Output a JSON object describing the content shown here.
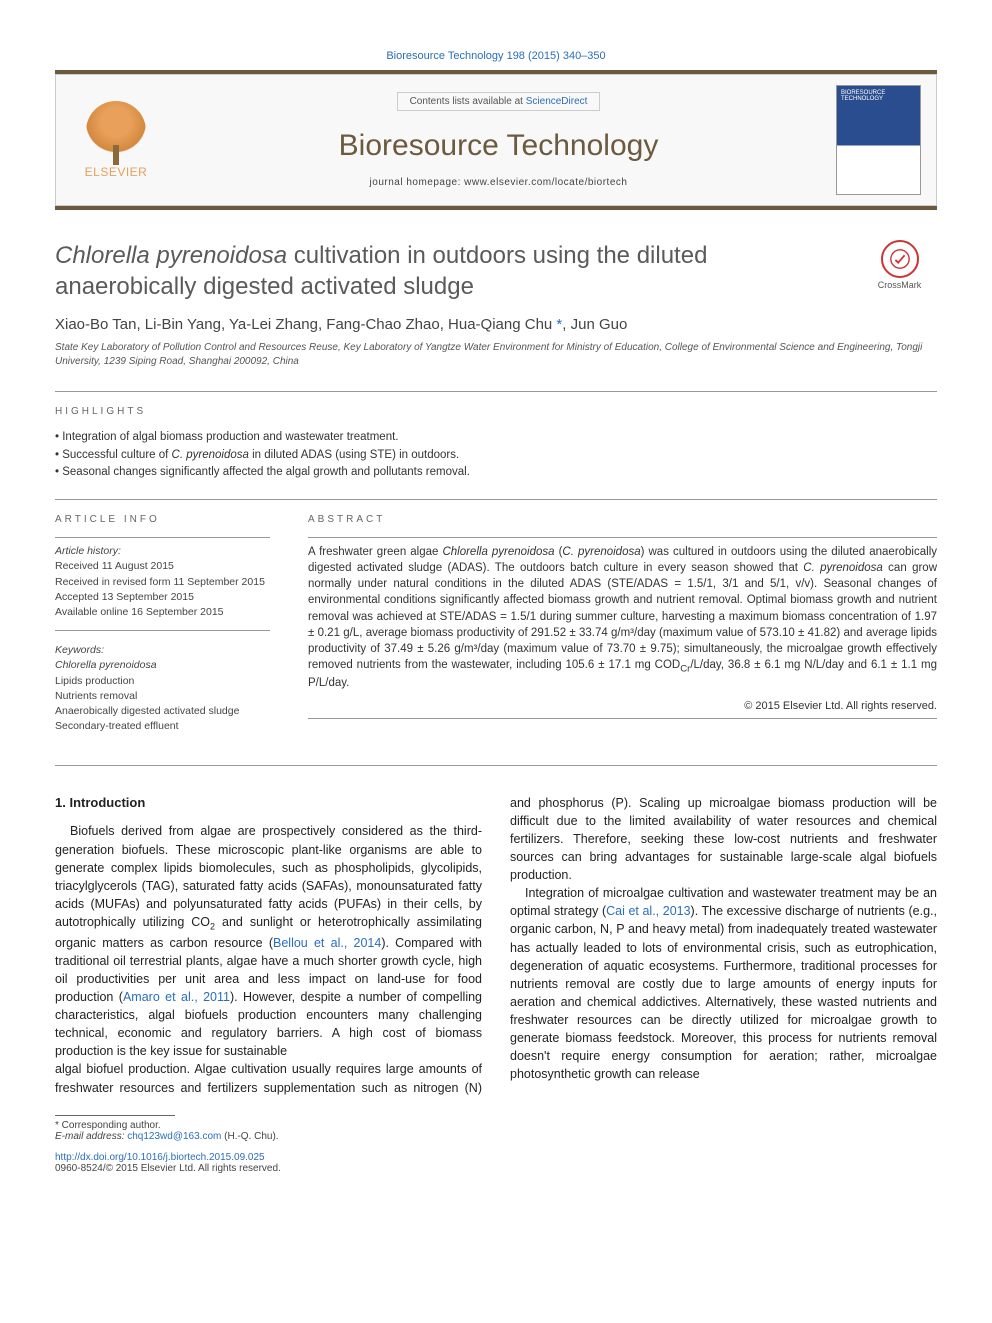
{
  "header": {
    "citation": "Bioresource Technology 198 (2015) 340–350",
    "contents_prefix": "Contents lists available at ",
    "contents_link": "ScienceDirect",
    "journal": "Bioresource Technology",
    "homepage_prefix": "journal homepage: ",
    "homepage_url": "www.elsevier.com/locate/biortech",
    "publisher": "ELSEVIER",
    "cover_label": "BIORESOURCE TECHNOLOGY"
  },
  "title": {
    "italic_part": "Chlorella pyrenoidosa",
    "rest": " cultivation in outdoors using the diluted anaerobically digested activated sludge"
  },
  "crossmark": "CrossMark",
  "authors": "Xiao-Bo Tan, Li-Bin Yang, Ya-Lei Zhang, Fang-Chao Zhao, Hua-Qiang Chu ",
  "authors_corr": "*",
  "authors_tail": ", Jun Guo",
  "affiliation": "State Key Laboratory of Pollution Control and Resources Reuse, Key Laboratory of Yangtze Water Environment for Ministry of Education, College of Environmental Science and Engineering, Tongji University, 1239 Siping Road, Shanghai 200092, China",
  "highlights": {
    "heading": "HIGHLIGHTS",
    "items": [
      {
        "pre": "Integration of algal biomass production and wastewater treatment.",
        "it": "",
        "post": ""
      },
      {
        "pre": "Successful culture of ",
        "it": "C. pyrenoidosa",
        "post": " in diluted ADAS (using STE) in outdoors."
      },
      {
        "pre": "Seasonal changes significantly affected the algal growth and pollutants removal.",
        "it": "",
        "post": ""
      }
    ]
  },
  "article_info": {
    "heading": "ARTICLE INFO",
    "history_label": "Article history:",
    "history": [
      "Received 11 August 2015",
      "Received in revised form 11 September 2015",
      "Accepted 13 September 2015",
      "Available online 16 September 2015"
    ],
    "keywords_label": "Keywords:",
    "keywords": [
      {
        "text": "Chlorella pyrenoidosa",
        "italic": true
      },
      {
        "text": "Lipids production",
        "italic": false
      },
      {
        "text": "Nutrients removal",
        "italic": false
      },
      {
        "text": "Anaerobically digested activated sludge",
        "italic": false
      },
      {
        "text": "Secondary-treated effluent",
        "italic": false
      }
    ]
  },
  "abstract": {
    "heading": "ABSTRACT",
    "text_parts": [
      {
        "t": "A freshwater green algae ",
        "i": false
      },
      {
        "t": "Chlorella pyrenoidosa",
        "i": true
      },
      {
        "t": " (",
        "i": false
      },
      {
        "t": "C. pyrenoidosa",
        "i": true
      },
      {
        "t": ") was cultured in outdoors using the diluted anaerobically digested activated sludge (ADAS). The outdoors batch culture in every season showed that ",
        "i": false
      },
      {
        "t": "C. pyrenoidosa",
        "i": true
      },
      {
        "t": " can grow normally under natural conditions in the diluted ADAS (STE/ADAS = 1.5/1, 3/1 and 5/1, v/v). Seasonal changes of environmental conditions significantly affected biomass growth and nutrient removal. Optimal biomass growth and nutrient removal was achieved at STE/ADAS = 1.5/1 during summer culture, harvesting a maximum biomass concentration of 1.97 ± 0.21 g/L, average biomass productivity of 291.52 ± 33.74 g/m³/day (maximum value of 573.10 ± 41.82) and average lipids productivity of 37.49 ± 5.26 g/m³/day (maximum value of 73.70 ± 9.75); simultaneously, the microalgae growth effectively removed nutrients from the wastewater, including 105.6 ± 17.1 mg COD",
        "i": false
      },
      {
        "t": "Cr",
        "i": false,
        "sub": true
      },
      {
        "t": "/L/day, 36.8 ± 6.1 mg N/L/day and 6.1 ± 1.1 mg P/L/day.",
        "i": false
      }
    ],
    "copyright": "© 2015 Elsevier Ltd. All rights reserved."
  },
  "body": {
    "section_heading": "1. Introduction",
    "para1": "Biofuels derived from algae are prospectively considered as the third-generation biofuels. These microscopic plant-like organisms are able to generate complex lipids biomolecules, such as phospholipids, glycolipids, triacylglycerols (TAG), saturated fatty acids (SAFAs), monounsaturated fatty acids (MUFAs) and polyunsaturated fatty acids (PUFAs) in their cells, by autotrophically utilizing CO",
    "para1_sub": "2",
    "para1b": " and sunlight or heterotrophically assimilating organic matters as carbon resource (",
    "ref1": "Bellou et al., 2014",
    "para1c": "). Compared with traditional oil terrestrial plants, algae have a much shorter growth cycle, high oil productivities per unit area and less impact on land-use for food production (",
    "ref2": "Amaro et al., 2011",
    "para1d": "). However, despite a number of compelling characteristics, algal biofuels production encounters many challenging technical, economic and regulatory barriers. A high cost of biomass production is the key issue for sustainable",
    "para2": "algal biofuel production. Algae cultivation usually requires large amounts of freshwater resources and fertilizers supplementation such as nitrogen (N) and phosphorus (P). Scaling up microalgae biomass production will be difficult due to the limited availability of water resources and chemical fertilizers. Therefore, seeking these low-cost nutrients and freshwater sources can bring advantages for sustainable large-scale algal biofuels production.",
    "para3a": "Integration of microalgae cultivation and wastewater treatment may be an optimal strategy (",
    "ref3": "Cai et al., 2013",
    "para3b": "). The excessive discharge of nutrients (e.g., organic carbon, N, P and heavy metal) from inadequately treated wastewater has actually leaded to lots of environmental crisis, such as eutrophication, degeneration of aquatic ecosystems. Furthermore, traditional processes for nutrients removal are costly due to large amounts of energy inputs for aeration and chemical addictives. Alternatively, these wasted nutrients and freshwater resources can be directly utilized for microalgae growth to generate biomass feedstock. Moreover, this process for nutrients removal doesn't require energy consumption for aeration; rather, microalgae photosynthetic growth can release"
  },
  "footer": {
    "corr_label": "* Corresponding author.",
    "email_label": "E-mail address:",
    "email": "chq123wd@163.com",
    "email_who": " (H.-Q. Chu).",
    "doi": "http://dx.doi.org/10.1016/j.biortech.2015.09.025",
    "issn": "0960-8524/© 2015 Elsevier Ltd. All rights reserved."
  },
  "colors": {
    "accent_brown": "#6b5a3e",
    "link_blue": "#2a6ebb",
    "elsevier_orange": "#e8a05a"
  }
}
